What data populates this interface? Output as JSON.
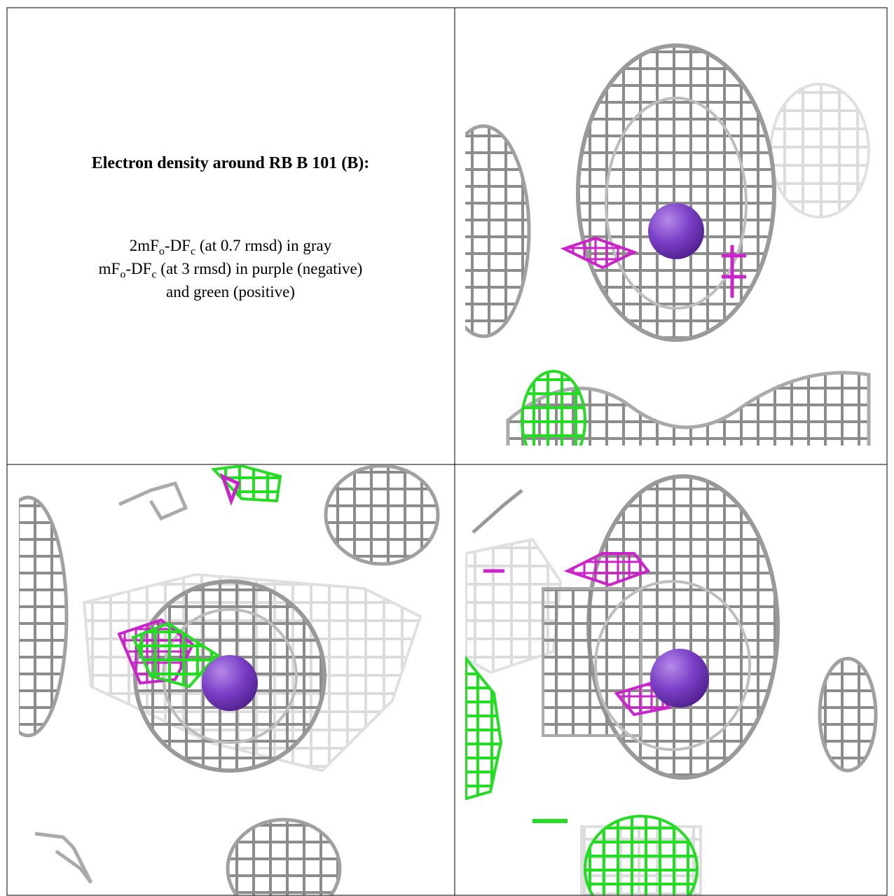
{
  "title": "Electron density around RB B 101 (B):",
  "caption": [
    [
      "2mF",
      "o",
      "-DF",
      "c",
      " (at 0.7 rmsd) in gray"
    ],
    [
      "mF",
      "o",
      "-DF",
      "c",
      " (at 3 rmsd) in purple (negative)"
    ],
    [
      "and green (positive)"
    ]
  ]
}
